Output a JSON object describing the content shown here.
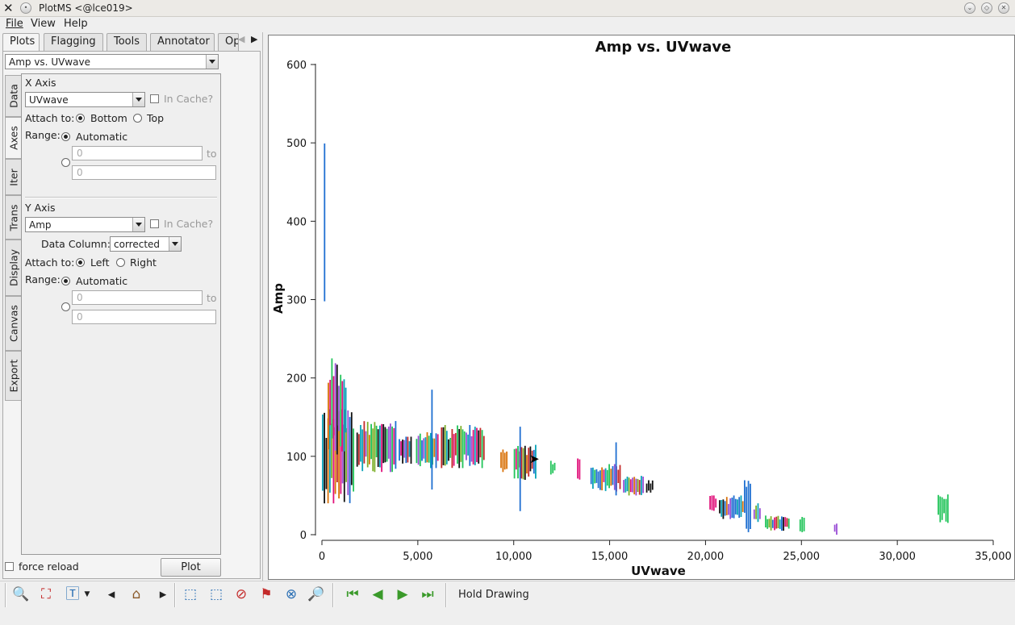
{
  "window": {
    "title": "PlotMS <@lce019>"
  },
  "menu": [
    "File",
    "View",
    "Help"
  ],
  "tabs": [
    "Plots",
    "Flagging",
    "Tools",
    "Annotator",
    "Op"
  ],
  "plot_selector": "Amp vs. UVwave",
  "side_tabs": [
    "Data",
    "Axes",
    "Iter",
    "Trans",
    "Display",
    "Canvas",
    "Export"
  ],
  "x_axis": {
    "heading": "X Axis",
    "value": "UVwave",
    "in_cache": "In Cache?",
    "attach_label": "Attach to:",
    "attach_options": [
      "Bottom",
      "Top"
    ],
    "range_label": "Range:",
    "range_auto": "Automatic",
    "range_min": "0",
    "range_to": "to",
    "range_max": "0"
  },
  "y_axis": {
    "heading": "Y Axis",
    "value": "Amp",
    "in_cache": "In Cache?",
    "data_column_label": "Data Column:",
    "data_column": "corrected",
    "attach_label": "Attach to:",
    "attach_options": [
      "Left",
      "Right"
    ],
    "range_label": "Range:",
    "range_auto": "Automatic",
    "range_min": "0",
    "range_to": "to",
    "range_max": "0"
  },
  "footer": {
    "force_reload": "force reload",
    "plot_button": "Plot"
  },
  "toolbar": {
    "icons": [
      "zoom-icon",
      "zoom-fit-icon",
      "annotate-text-icon",
      "step-back-icon",
      "home-icon",
      "step-forward-icon",
      "select-region-icon",
      "subtract-region-icon",
      "clear-regions-icon",
      "flag-icon",
      "unflag-icon",
      "locate-icon",
      "first-page-icon",
      "previous-page-icon",
      "next-page-icon",
      "last-page-icon"
    ],
    "hold_drawing": "Hold Drawing"
  },
  "colors": {
    "accent_green": "#3a9a2a",
    "tool_blue": "#2a6fb4"
  },
  "chart_data": {
    "type": "scatter",
    "title": "Amp vs. UVwave",
    "xlabel": "UVwave",
    "ylabel": "Amp",
    "xlim": [
      0,
      35000
    ],
    "ylim": [
      0,
      600
    ],
    "xticks": [
      "0",
      "5,000",
      "10,000",
      "15,000",
      "20,000",
      "25,000",
      "30,000",
      "35,000"
    ],
    "yticks": [
      "0",
      "100",
      "200",
      "300",
      "400",
      "500",
      "600"
    ],
    "grid": false,
    "legend": "none",
    "palette": [
      "#1f6fd1",
      "#e0117a",
      "#22c45a",
      "#d9730a",
      "#9b4fd6",
      "#0aa3b8",
      "#111111",
      "#7db02a",
      "#c42a2a"
    ],
    "clusters": [
      {
        "x": [
          0,
          1700
        ],
        "y": [
          40,
          160
        ],
        "color": "mixed"
      },
      {
        "x": 100,
        "y": [
          240,
          545
        ],
        "color": "#1f6fd1"
      },
      {
        "x": [
          300,
          1300
        ],
        "y": [
          100,
          225
        ],
        "color": "mixed"
      },
      {
        "x": [
          1800,
          3900
        ],
        "y": [
          80,
          145
        ],
        "color": "mixed"
      },
      {
        "x": [
          4000,
          4700
        ],
        "y": [
          90,
          125
        ],
        "color": "mixed"
      },
      {
        "x": [
          4900,
          6100
        ],
        "y": [
          85,
          135
        ],
        "color": "mixed"
      },
      {
        "x": [
          5700,
          5700
        ],
        "y": [
          50,
          185
        ],
        "color": "#1f6fd1"
      },
      {
        "x": [
          6200,
          8500
        ],
        "y": [
          85,
          140
        ],
        "color": "mixed"
      },
      {
        "x": [
          9300,
          9700
        ],
        "y": [
          80,
          110
        ],
        "color": "#d9730a"
      },
      {
        "x": [
          10000,
          11200
        ],
        "y": [
          70,
          115
        ],
        "color": "mixed"
      },
      {
        "x": [
          10300,
          10300
        ],
        "y": [
          30,
          145
        ],
        "color": "#1f6fd1"
      },
      {
        "x": [
          11900,
          12200
        ],
        "y": [
          75,
          95
        ],
        "color": "#22c45a"
      },
      {
        "x": [
          13300,
          13500
        ],
        "y": [
          70,
          98
        ],
        "color": "#e0117a"
      },
      {
        "x": [
          14000,
          15600
        ],
        "y": [
          55,
          90
        ],
        "color": "mixed"
      },
      {
        "x": [
          15300,
          15300
        ],
        "y": [
          20,
          130
        ],
        "color": "#1f6fd1"
      },
      {
        "x": [
          15700,
          16800
        ],
        "y": [
          50,
          75
        ],
        "color": "mixed"
      },
      {
        "x": [
          16900,
          17300
        ],
        "y": [
          50,
          72
        ],
        "color": "#111111"
      },
      {
        "x": [
          20200,
          20600
        ],
        "y": [
          30,
          50
        ],
        "color": "#e0117a"
      },
      {
        "x": [
          20700,
          22000
        ],
        "y": [
          20,
          50
        ],
        "color": "mixed"
      },
      {
        "x": [
          22000,
          22400
        ],
        "y": [
          0,
          85
        ],
        "color": "#1f6fd1"
      },
      {
        "x": [
          22500,
          22900
        ],
        "y": [
          15,
          40
        ],
        "color": "mixed"
      },
      {
        "x": [
          23100,
          24400
        ],
        "y": [
          5,
          25
        ],
        "color": "mixed"
      },
      {
        "x": [
          24900,
          25200
        ],
        "y": [
          0,
          25
        ],
        "color": "#22c45a"
      },
      {
        "x": [
          26700,
          26900
        ],
        "y": [
          0,
          15
        ],
        "color": "#9b4fd6"
      },
      {
        "x": [
          32100,
          32700
        ],
        "y": [
          15,
          55
        ],
        "color": "#22c45a"
      }
    ]
  }
}
